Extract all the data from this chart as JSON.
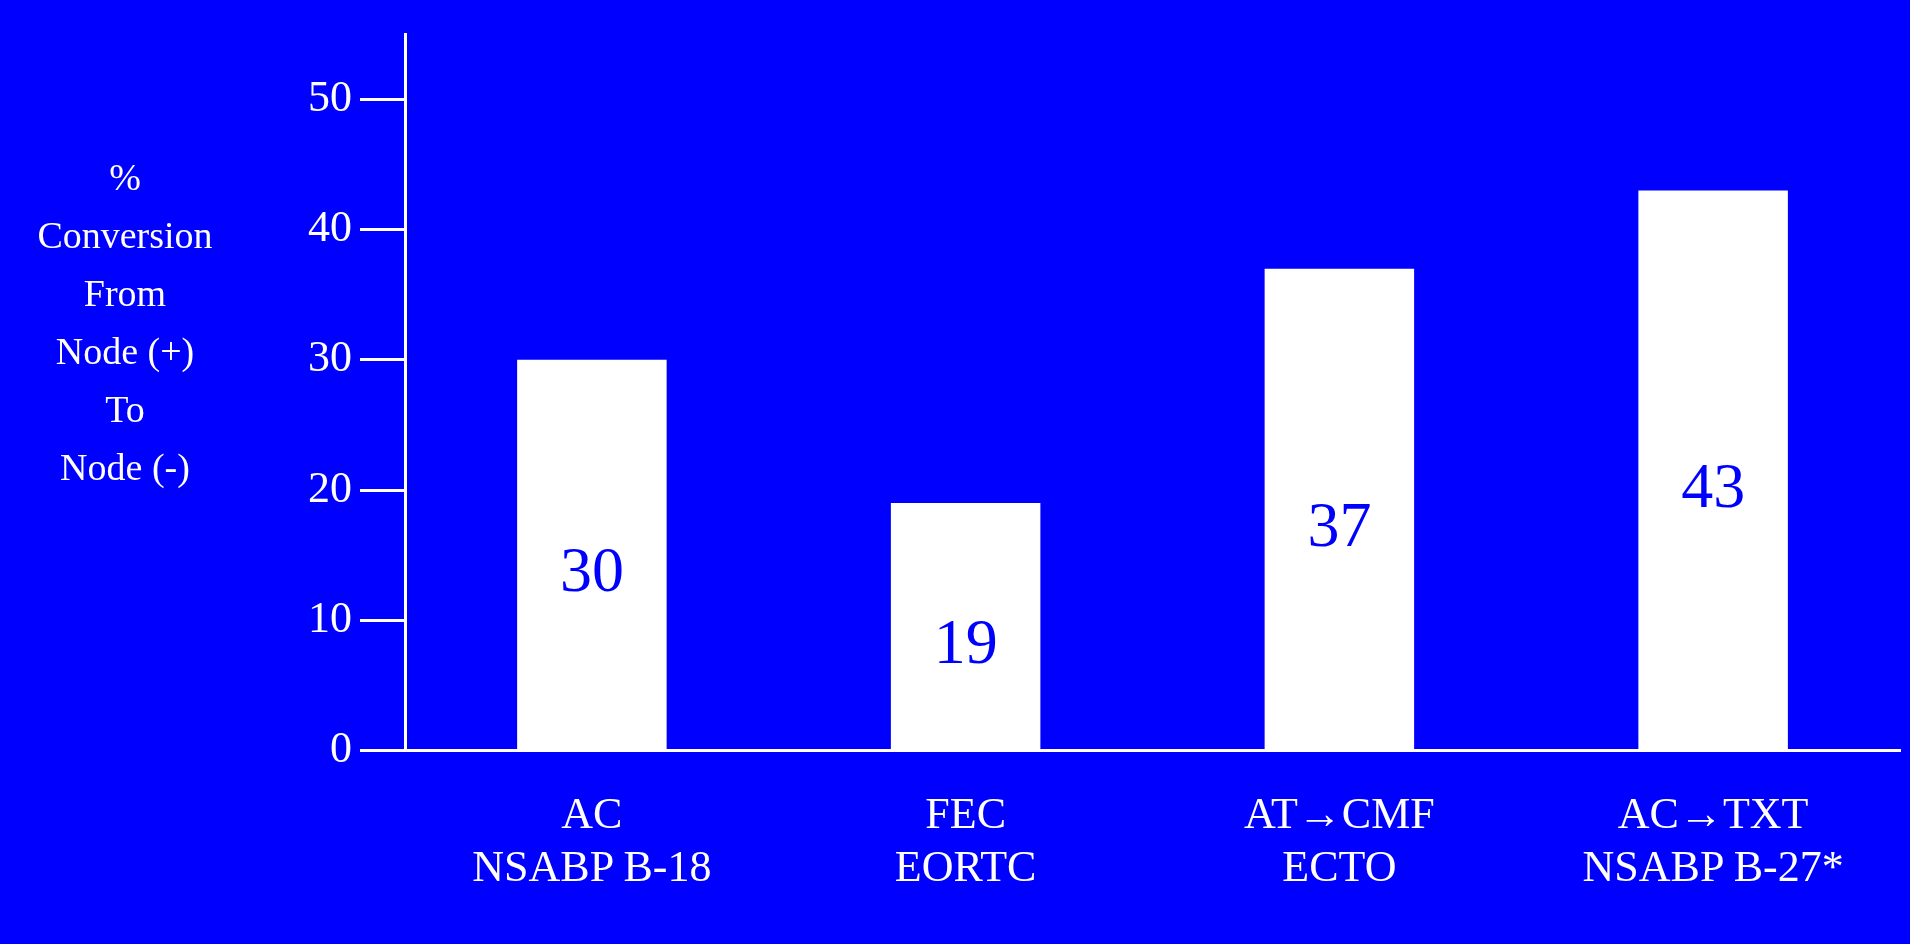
{
  "chart_data": {
    "type": "bar",
    "ylabel": "%\nConversion\nFrom\nNode (+)\nTo\nNode (-)",
    "categories": [
      "AC\nNSABP B-18",
      "FEC\nEORTC",
      "AT→CMF\nECTO",
      "AC→TXT\nNSABP B-27*"
    ],
    "values": [
      30,
      19,
      37,
      43
    ],
    "color": "#ffffff",
    "data_labels": true,
    "ylim": [
      0,
      55
    ],
    "yticks": [
      0,
      10,
      20,
      30,
      40,
      50
    ]
  }
}
